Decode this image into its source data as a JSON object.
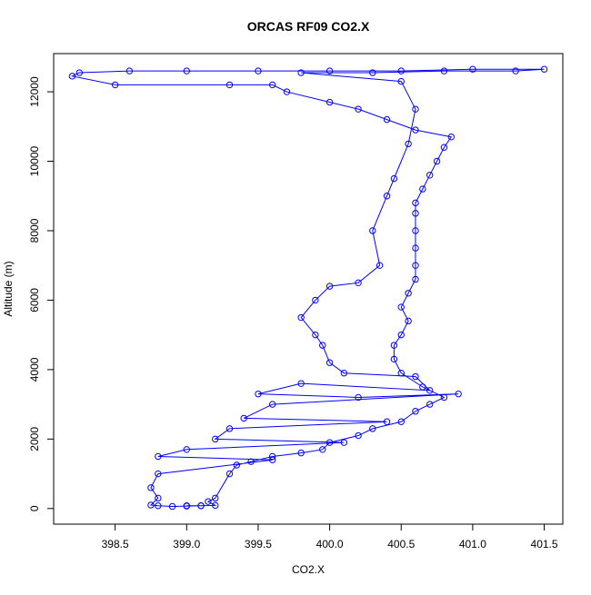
{
  "chart_data": {
    "type": "scatter",
    "title": "ORCAS RF09 CO2.X",
    "x_label": "CO2.X",
    "y_label": "Altitude (m)",
    "series": [
      {
        "color": "#0000ff",
        "x": [
          399.0,
          399.1,
          399.2,
          399.15,
          399.2,
          399.3,
          399.35,
          399.45,
          399.6,
          399.8,
          399.95,
          400.0,
          400.2,
          400.3,
          400.5,
          400.6,
          400.7,
          400.8,
          400.65,
          400.5,
          400.45,
          400.45,
          400.5,
          400.55,
          400.5,
          400.55,
          400.6,
          400.6,
          400.6,
          400.6,
          400.6,
          400.6,
          400.65,
          400.7,
          400.75,
          400.8,
          400.85,
          400.6,
          400.4,
          400.2,
          400.0,
          399.7,
          399.6,
          399.3,
          398.5,
          398.2,
          398.25,
          398.6,
          399.0,
          399.5,
          400.0,
          400.5,
          401.0,
          401.5,
          401.3,
          400.8,
          400.3,
          399.8,
          400.5,
          400.6,
          400.55,
          400.45,
          400.4,
          400.3,
          400.35,
          400.2,
          400.0,
          399.9,
          399.8,
          399.9,
          399.95,
          400.0,
          400.1,
          400.6,
          400.7,
          399.8,
          399.5,
          400.2,
          400.9,
          399.6,
          399.4,
          400.4,
          399.3,
          399.2,
          400.1,
          399.0,
          398.8,
          399.6,
          398.8,
          398.75,
          398.8,
          398.75,
          398.8,
          398.9,
          399.0,
          399.1
        ],
        "y": [
          80,
          80,
          90,
          200,
          300,
          1000,
          1250,
          1350,
          1500,
          1600,
          1700,
          1900,
          2100,
          2300,
          2500,
          2800,
          3000,
          3200,
          3500,
          3900,
          4300,
          4700,
          5000,
          5400,
          5800,
          6200,
          6600,
          7000,
          7500,
          8000,
          8500,
          8800,
          9200,
          9600,
          10000,
          10400,
          10700,
          10900,
          11200,
          11500,
          11700,
          12000,
          12200,
          12200,
          12200,
          12450,
          12550,
          12600,
          12600,
          12600,
          12600,
          12600,
          12650,
          12650,
          12600,
          12600,
          12550,
          12550,
          12300,
          11500,
          10500,
          9500,
          9000,
          8000,
          7000,
          6500,
          6400,
          6000,
          5500,
          5000,
          4700,
          4200,
          3900,
          3800,
          3400,
          3600,
          3300,
          3200,
          3300,
          3000,
          2600,
          2500,
          2300,
          2000,
          1900,
          1700,
          1500,
          1400,
          1000,
          600,
          300,
          100,
          80,
          60,
          70,
          80
        ]
      }
    ],
    "xlim": [
      398.07,
      401.63
    ],
    "ylim": [
      -450,
      13100
    ],
    "xticks": [
      398.5,
      {
        "value": 399,
        "label": "399.0"
      },
      399.5,
      {
        "value": 400,
        "label": "400.0"
      },
      400.5,
      {
        "value": 401,
        "label": "401.0"
      },
      401.5
    ],
    "yticks": [
      0,
      2000,
      4000,
      6000,
      8000,
      10000,
      12000
    ]
  }
}
